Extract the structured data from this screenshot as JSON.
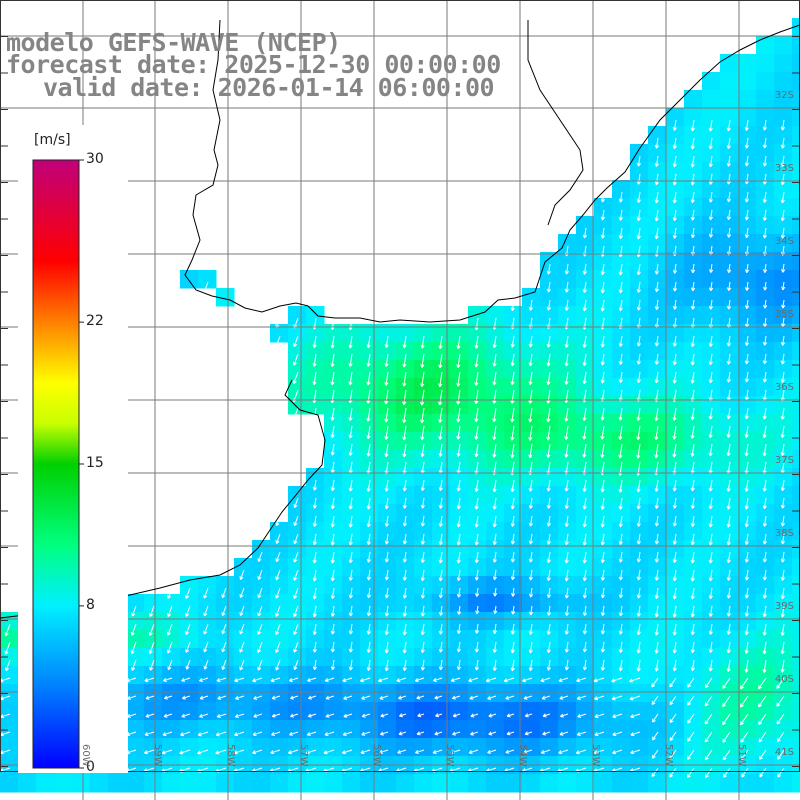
{
  "title": {
    "line1": "modelo GEFS-WAVE (NCEP)",
    "line2": "forecast date: 2025-12-30 00:00:00",
    "line3": "valid date: 2026-01-14 06:00:00"
  },
  "colorbar": {
    "unit": "[m/s]",
    "ticks": [
      "30",
      "22",
      "15",
      "8",
      "0"
    ],
    "tick_values": [
      30,
      22,
      15,
      8,
      0
    ],
    "min": 0,
    "max": 30,
    "colors": [
      "#0000ff",
      "#0080ff",
      "#00e5ff",
      "#00ff60",
      "#00e000",
      "#ffff00",
      "#ff8000",
      "#ff0000",
      "#e0006a",
      "#c00080"
    ]
  },
  "map": {
    "lat_labels": [
      "32S",
      "33S",
      "34S",
      "35S",
      "36S",
      "37S",
      "38S",
      "39S",
      "40S",
      "41S"
    ],
    "lon_labels": [
      "60W",
      "59W",
      "58W",
      "57W",
      "56W",
      "55W",
      "54W",
      "53W",
      "52W",
      "51W"
    ],
    "land_color": "#ffffff",
    "arrow_color": "#ffffff",
    "grid_color": "#808080",
    "coast_color": "#000000"
  }
}
